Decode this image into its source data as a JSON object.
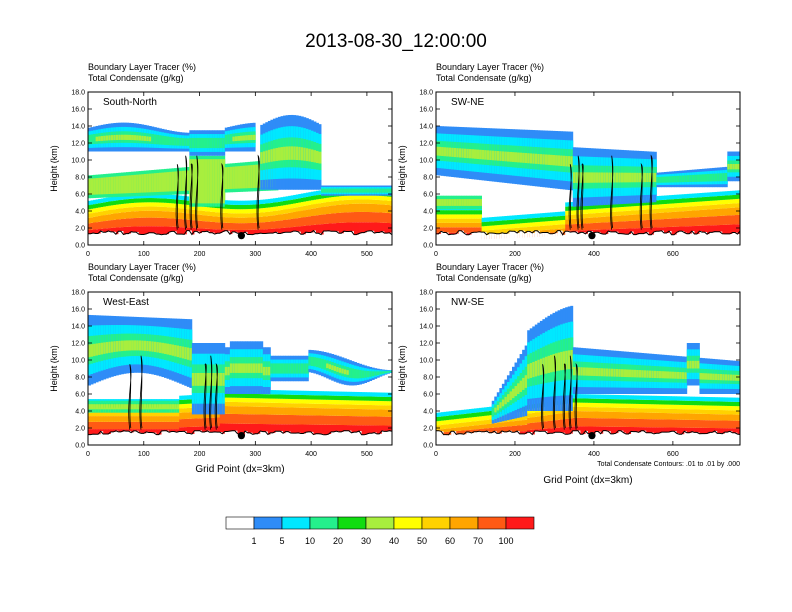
{
  "title": "2013-08-30_12:00:00",
  "footnote": "Total Condensate Contours: .01 to .01 by .000",
  "colorbar": {
    "labels": [
      "1",
      "5",
      "10",
      "20",
      "30",
      "40",
      "50",
      "60",
      "70",
      "100"
    ],
    "colors": [
      "#ffffff",
      "#2f8cf7",
      "#00e8ff",
      "#24f08c",
      "#10dc10",
      "#a8ee3e",
      "#ffff00",
      "#ffd200",
      "#ffa500",
      "#ff5a14",
      "#ff1a1a"
    ]
  },
  "chart_data": [
    {
      "type": "heatmap",
      "panel_label": "South-North",
      "subtitle_lines": [
        "Boundary Layer Tracer   (%)",
        "Total Condensate   (g/kg)"
      ],
      "ylabel": "Height (km)",
      "xlabel": "",
      "xlim": [
        0,
        545
      ],
      "ylim": [
        0,
        18
      ],
      "xticks": [
        0,
        100,
        200,
        300,
        400,
        500
      ],
      "yticks": [
        "0.0",
        "2.0",
        "4.0",
        "6.0",
        "8.0",
        "10.0",
        "12.0",
        "14.0",
        "16.0",
        "18.0"
      ],
      "marker_x": 275,
      "contour_x": [
        160,
        175,
        185,
        195,
        240,
        305
      ]
    },
    {
      "type": "heatmap",
      "panel_label": "SW-NE",
      "subtitle_lines": [
        "Boundary Layer Tracer   (%)",
        "Total Condensate   (g/kg)"
      ],
      "ylabel": "Height (km)",
      "xlabel": "",
      "xlim": [
        0,
        770
      ],
      "ylim": [
        0,
        18
      ],
      "xticks": [
        0,
        200,
        400,
        600
      ],
      "yticks": [
        "0.0",
        "2.0",
        "4.0",
        "6.0",
        "8.0",
        "10.0",
        "12.0",
        "14.0",
        "16.0",
        "18.0"
      ],
      "marker_x": 395,
      "contour_x": [
        340,
        360,
        370,
        445,
        520,
        545
      ]
    },
    {
      "type": "heatmap",
      "panel_label": "West-East",
      "subtitle_lines": [
        "Boundary Layer Tracer   (%)",
        "Total Condensate   (g/kg)"
      ],
      "ylabel": "Height (km)",
      "xlabel": "Grid Point (dx=3km)",
      "xlim": [
        0,
        545
      ],
      "ylim": [
        0,
        18
      ],
      "xticks": [
        0,
        100,
        200,
        300,
        400,
        500
      ],
      "yticks": [
        "0.0",
        "2.0",
        "4.0",
        "6.0",
        "8.0",
        "10.0",
        "12.0",
        "14.0",
        "16.0",
        "18.0"
      ],
      "marker_x": 275,
      "contour_x": [
        75,
        95,
        210,
        220,
        230
      ]
    },
    {
      "type": "heatmap",
      "panel_label": "NW-SE",
      "subtitle_lines": [
        "Boundary Layer Tracer   (%)",
        "Total Condensate   (g/kg)"
      ],
      "ylabel": "Height (km)",
      "xlabel": "Grid Point (dx=3km)",
      "xlim": [
        0,
        770
      ],
      "ylim": [
        0,
        18
      ],
      "xticks": [
        0,
        200,
        400,
        600
      ],
      "yticks": [
        "0.0",
        "2.0",
        "4.0",
        "6.0",
        "8.0",
        "10.0",
        "12.0",
        "14.0",
        "16.0",
        "18.0"
      ],
      "marker_x": 395,
      "contour_x": [
        270,
        300,
        325,
        340,
        355
      ]
    }
  ]
}
